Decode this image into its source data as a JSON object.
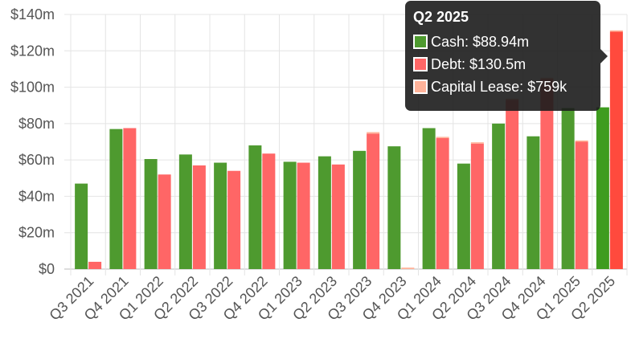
{
  "chart_data": {
    "type": "bar",
    "categories": [
      "Q3 2021",
      "Q4 2021",
      "Q1 2022",
      "Q2 2022",
      "Q3 2022",
      "Q4 2022",
      "Q1 2023",
      "Q2 2023",
      "Q3 2023",
      "Q4 2023",
      "Q1 2024",
      "Q2 2024",
      "Q3 2024",
      "Q4 2024",
      "Q1 2025",
      "Q2 2025"
    ],
    "series": [
      {
        "name": "Cash",
        "color": "#4e9a2f",
        "values": [
          47,
          77,
          60.5,
          63,
          58.5,
          68,
          59,
          62,
          65,
          67.5,
          77.5,
          58,
          80,
          73,
          88.5,
          88.94
        ],
        "stack": "cash"
      },
      {
        "name": "Debt",
        "color": "#ff6666",
        "values": [
          4,
          77.5,
          52,
          57,
          54,
          63.5,
          58.5,
          57.5,
          74.5,
          0,
          72,
          69,
          93,
          104.5,
          70,
          130.5
        ],
        "stack": "debt"
      },
      {
        "name": "Capital Lease",
        "color": "#ffb39a",
        "values": [
          0,
          0,
          0,
          0,
          0,
          0,
          0,
          0,
          0.8,
          0.8,
          0.7,
          0.6,
          0.6,
          0.6,
          0.7,
          0.759
        ],
        "stack": "debt"
      }
    ],
    "y_ticks": [
      "$0",
      "$20m",
      "$40m",
      "$60m",
      "$80m",
      "$100m",
      "$120m",
      "$140m"
    ],
    "ylim": [
      0,
      140
    ],
    "grid": true,
    "highlighted_category": "Q2 2025",
    "highlight_colors": {
      "Cash": "#3e9c1f",
      "Debt": "#ff4a3d"
    },
    "title": "",
    "xlabel": "",
    "ylabel": ""
  },
  "tooltip": {
    "title": "Q2 2025",
    "rows": [
      {
        "label": "Cash: $88.94m",
        "color": "#4e9a2f"
      },
      {
        "label": "Debt: $130.5m",
        "color": "#ff6666"
      },
      {
        "label": "Capital Lease: $759k",
        "color": "#ffb39a"
      }
    ]
  }
}
